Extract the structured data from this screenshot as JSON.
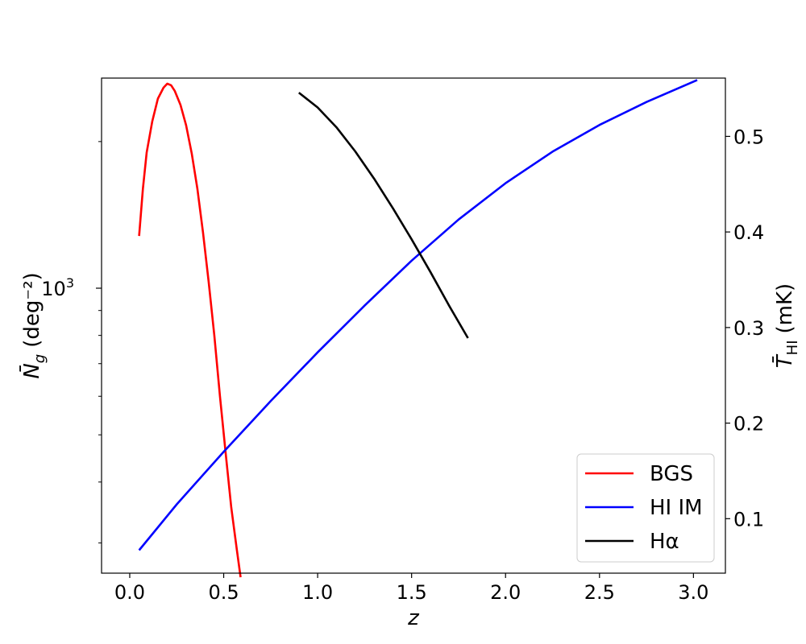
{
  "chart_data": {
    "type": "line",
    "xlabel": "z",
    "ylabel": "N̄g (deg⁻²)",
    "ylabel_base": "N̄",
    "ylabel_sub": "g",
    "ylabel_unit": "(deg⁻²)",
    "y2label": "T̄HI (mK)",
    "y2label_base": "T̄",
    "y2label_sub": "HI",
    "y2label_unit": "(mK)",
    "xlim": [
      -0.15,
      3.17
    ],
    "ylim": [
      260,
      2700
    ],
    "yscale": "log",
    "y2lim": [
      0.043,
      0.561
    ],
    "x_ticks": [
      0.0,
      0.5,
      1.0,
      1.5,
      2.0,
      2.5,
      3.0
    ],
    "x_tick_labels": [
      "0.0",
      "0.5",
      "1.0",
      "1.5",
      "2.0",
      "2.5",
      "3.0"
    ],
    "y_major_ticks": [
      1000
    ],
    "y_major_tick_labels": [
      "10"
    ],
    "y_major_tick_exponents": [
      "3"
    ],
    "y_minor_ticks": [
      300,
      400,
      500,
      600,
      700,
      800,
      900,
      2000
    ],
    "y2_ticks": [
      0.1,
      0.2,
      0.3,
      0.4,
      0.5
    ],
    "y2_tick_labels": [
      "0.1",
      "0.2",
      "0.3",
      "0.4",
      "0.5"
    ],
    "legend_position": "lower-right",
    "grid": false,
    "series": [
      {
        "name": "BGS",
        "axis": "left",
        "color": "#ff0000",
        "x": [
          0.05,
          0.07,
          0.09,
          0.12,
          0.15,
          0.18,
          0.2,
          0.22,
          0.24,
          0.27,
          0.3,
          0.33,
          0.36,
          0.39,
          0.42,
          0.45,
          0.48,
          0.51,
          0.54,
          0.57,
          0.59
        ],
        "y": [
          1280,
          1600,
          1900,
          2200,
          2450,
          2580,
          2630,
          2610,
          2540,
          2380,
          2160,
          1890,
          1600,
          1300,
          1030,
          800,
          600,
          460,
          355,
          290,
          255
        ]
      },
      {
        "name": "HI IM",
        "axis": "right",
        "color": "#0000ff",
        "x": [
          0.05,
          0.25,
          0.5,
          0.75,
          1.0,
          1.25,
          1.5,
          1.75,
          2.0,
          2.25,
          2.5,
          2.75,
          3.02
        ],
        "y": [
          0.067,
          0.115,
          0.17,
          0.223,
          0.274,
          0.323,
          0.37,
          0.413,
          0.451,
          0.484,
          0.512,
          0.536,
          0.559
        ]
      },
      {
        "name": "Hα",
        "axis": "left",
        "color": "#000000",
        "x": [
          0.9,
          1.0,
          1.1,
          1.2,
          1.3,
          1.4,
          1.5,
          1.6,
          1.7,
          1.8
        ],
        "y": [
          2520,
          2350,
          2140,
          1910,
          1680,
          1460,
          1260,
          1080,
          920,
          790
        ]
      }
    ]
  }
}
